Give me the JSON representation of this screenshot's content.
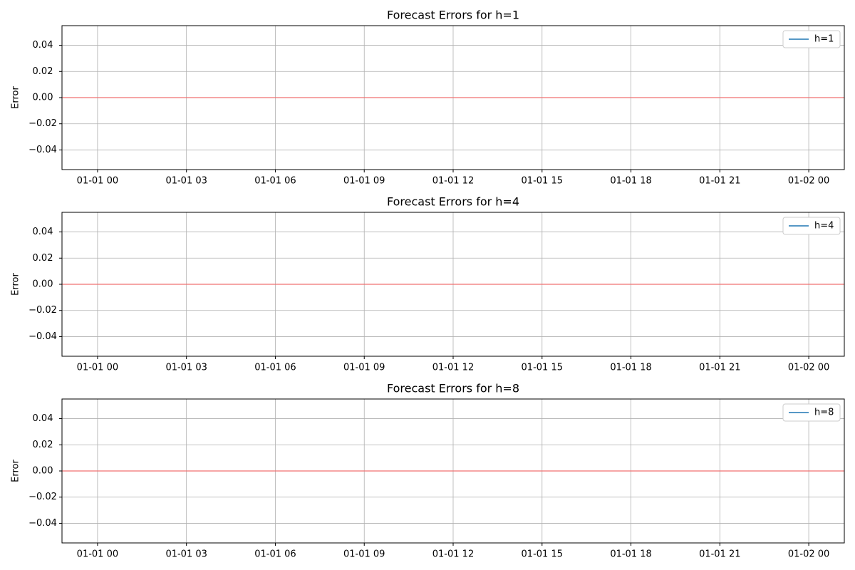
{
  "chart_data": [
    {
      "type": "line",
      "title": "Forecast Errors for h=1",
      "y_label": "Error",
      "series": [
        {
          "name": "h=1",
          "color": "#1f77b4",
          "x": [],
          "values": []
        }
      ],
      "xlim": [
        -1.2,
        25.2
      ],
      "xticks": [
        {
          "value": 0,
          "label": "01-01 00"
        },
        {
          "value": 3,
          "label": "01-01 03"
        },
        {
          "value": 6,
          "label": "01-01 06"
        },
        {
          "value": 9,
          "label": "01-01 09"
        },
        {
          "value": 12,
          "label": "01-01 12"
        },
        {
          "value": 15,
          "label": "01-01 15"
        },
        {
          "value": 18,
          "label": "01-01 18"
        },
        {
          "value": 21,
          "label": "01-01 21"
        },
        {
          "value": 24,
          "label": "01-02 00"
        }
      ],
      "ylim": [
        -0.055,
        0.055
      ],
      "yticks": [
        {
          "value": -0.04,
          "label": "−0.04"
        },
        {
          "value": -0.02,
          "label": "−0.02"
        },
        {
          "value": 0,
          "label": "0.00"
        },
        0.02,
        0.04
      ],
      "reference_line": 0,
      "reference_line_color": "#f07070",
      "grid": true,
      "legend": "upper right"
    },
    {
      "type": "line",
      "title": "Forecast Errors for h=4",
      "y_label": "Error",
      "series": [
        {
          "name": "h=4",
          "color": "#1f77b4",
          "x": [],
          "values": []
        }
      ],
      "xlim": [
        -1.2,
        25.2
      ],
      "xticks": [
        {
          "value": 0,
          "label": "01-01 00"
        },
        {
          "value": 3,
          "label": "01-01 03"
        },
        {
          "value": 6,
          "label": "01-01 06"
        },
        {
          "value": 9,
          "label": "01-01 09"
        },
        {
          "value": 12,
          "label": "01-01 12"
        },
        {
          "value": 15,
          "label": "01-01 15"
        },
        {
          "value": 18,
          "label": "01-01 18"
        },
        {
          "value": 21,
          "label": "01-01 21"
        },
        {
          "value": 24,
          "label": "01-02 00"
        }
      ],
      "ylim": [
        -0.055,
        0.055
      ],
      "yticks": [
        {
          "value": -0.04,
          "label": "−0.04"
        },
        {
          "value": -0.02,
          "label": "−0.02"
        },
        {
          "value": 0,
          "label": "0.00"
        },
        0.02,
        0.04
      ],
      "reference_line": 0,
      "reference_line_color": "#f07070",
      "grid": true,
      "legend": "upper right"
    },
    {
      "type": "line",
      "title": "Forecast Errors for h=8",
      "y_label": "Error",
      "series": [
        {
          "name": "h=8",
          "color": "#1f77b4",
          "x": [],
          "values": []
        }
      ],
      "xlim": [
        -1.2,
        25.2
      ],
      "xticks": [
        {
          "value": 0,
          "label": "01-01 00"
        },
        {
          "value": 3,
          "label": "01-01 03"
        },
        {
          "value": 6,
          "label": "01-01 06"
        },
        {
          "value": 9,
          "label": "01-01 09"
        },
        {
          "value": 12,
          "label": "01-01 12"
        },
        {
          "value": 15,
          "label": "01-01 15"
        },
        {
          "value": 18,
          "label": "01-01 18"
        },
        {
          "value": 21,
          "label": "01-01 21"
        },
        {
          "value": 24,
          "label": "01-02 00"
        }
      ],
      "ylim": [
        -0.055,
        0.055
      ],
      "yticks": [
        {
          "value": -0.04,
          "label": "−0.04"
        },
        {
          "value": -0.02,
          "label": "−0.02"
        },
        {
          "value": 0,
          "label": "0.00"
        },
        0.02,
        0.04
      ],
      "reference_line": 0,
      "reference_line_color": "#f07070",
      "grid": true,
      "legend": "upper right"
    }
  ]
}
